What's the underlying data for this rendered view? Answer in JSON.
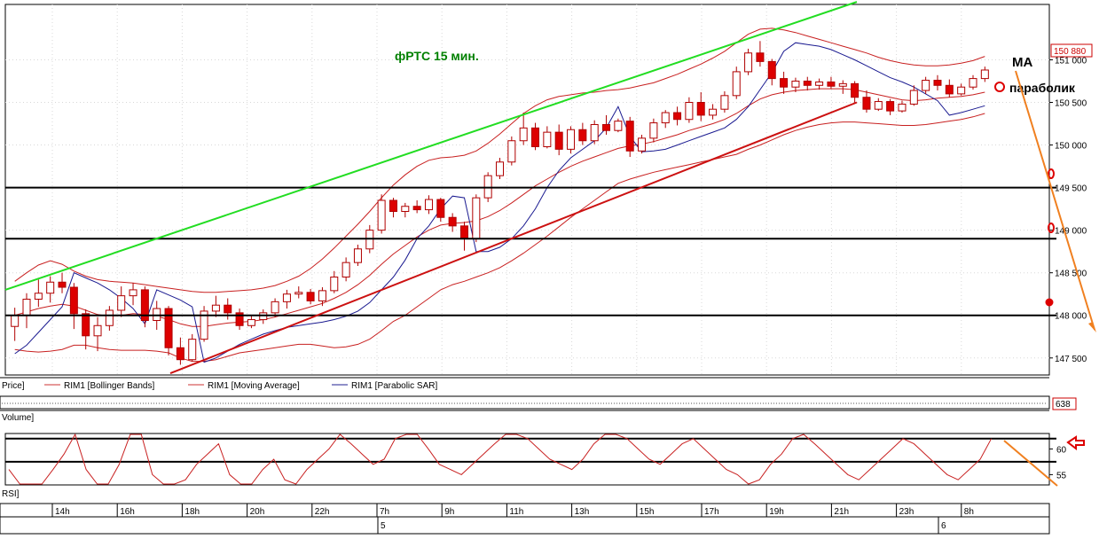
{
  "chart_data": {
    "type": "candlestick",
    "title": "фРТС   15 мин.",
    "price_axis": {
      "ylim": [
        147300,
        151650
      ],
      "ticks": [
        147500,
        148000,
        148500,
        149000,
        149500,
        150000,
        150500,
        151000
      ],
      "tick_labels": [
        "147 500",
        "148 000",
        "148 500",
        "149 000",
        "149 500",
        "150 000",
        "150 500",
        "151 000"
      ],
      "current_price": 150880,
      "current_price_label": "150 880"
    },
    "horizontal_levels": [
      149500,
      148900,
      148000
    ],
    "trendlines": [
      {
        "color": "#22dd22",
        "from": [
          0,
          148300
        ],
        "to": [
          1.6,
          151680
        ]
      },
      {
        "color": "#cc1111",
        "from": [
          0.31,
          147320
        ],
        "to": [
          1.6,
          150500
        ]
      }
    ],
    "legend": {
      "price": "Price]",
      "bollinger": "RIM1 [Bollinger Bands]",
      "ma": "RIM1 [Moving Average]",
      "sar": "RIM1 [Parabolic SAR]"
    },
    "annotations": {
      "ma_label": "MA",
      "sar_label": "параболик"
    },
    "volume": {
      "label": "Volume]",
      "value_label": "638"
    },
    "rsi": {
      "label": "RSI]",
      "ticks": [
        60,
        55
      ],
      "tick_labels": [
        "60",
        "55"
      ],
      "levels": [
        62,
        57.5
      ],
      "values": [
        56,
        53,
        51,
        52,
        56,
        59,
        63,
        56,
        52,
        53,
        57,
        63,
        64,
        55,
        52,
        51,
        54,
        57,
        59,
        61,
        55,
        53,
        52,
        56,
        58,
        54,
        53,
        56,
        58,
        60,
        63,
        61,
        59,
        57,
        58,
        62,
        64,
        63,
        60,
        57,
        56,
        55,
        57,
        59,
        61,
        63,
        64,
        62,
        60,
        58,
        57,
        56,
        58,
        61,
        63,
        64,
        62,
        60,
        58,
        57,
        59,
        61,
        62,
        60,
        58,
        56,
        55,
        53,
        54,
        57,
        59,
        62,
        63,
        61,
        59,
        57,
        55,
        54,
        56,
        58,
        60,
        62,
        61,
        59,
        57,
        55,
        54,
        56,
        58,
        62
      ],
      "ylim": [
        53,
        63
      ]
    },
    "time_axis": {
      "labels": [
        "14h",
        "16h",
        "18h",
        "20h",
        "22h",
        "7h",
        "9h",
        "11h",
        "13h",
        "15h",
        "17h",
        "19h",
        "21h",
        "23h",
        "8h"
      ],
      "day_labels": [
        "5",
        "6"
      ]
    },
    "candles": [
      [
        147870,
        148090,
        147700,
        148000
      ],
      [
        148000,
        148260,
        147850,
        148190
      ],
      [
        148190,
        148420,
        148100,
        148260
      ],
      [
        148260,
        148460,
        148150,
        148390
      ],
      [
        148390,
        148500,
        148260,
        148330
      ],
      [
        148330,
        148380,
        147840,
        148020
      ],
      [
        148020,
        148070,
        147600,
        147760
      ],
      [
        147760,
        147980,
        147580,
        147880
      ],
      [
        147880,
        148110,
        147820,
        148060
      ],
      [
        148060,
        148340,
        147980,
        148230
      ],
      [
        148230,
        148380,
        148120,
        148300
      ],
      [
        148300,
        148340,
        147860,
        147940
      ],
      [
        147940,
        148170,
        147830,
        148080
      ],
      [
        148080,
        148110,
        147530,
        147620
      ],
      [
        147620,
        147740,
        147420,
        147480
      ],
      [
        147480,
        147780,
        147460,
        147720
      ],
      [
        147720,
        148110,
        147690,
        148050
      ],
      [
        148050,
        148230,
        147980,
        148120
      ],
      [
        148120,
        148200,
        147950,
        148030
      ],
      [
        148030,
        148080,
        147830,
        147880
      ],
      [
        147880,
        148000,
        147850,
        147950
      ],
      [
        147950,
        148070,
        147900,
        148030
      ],
      [
        148030,
        148200,
        147980,
        148160
      ],
      [
        148160,
        148300,
        148080,
        148250
      ],
      [
        148250,
        148340,
        148200,
        148270
      ],
      [
        148270,
        148310,
        148130,
        148170
      ],
      [
        148170,
        148330,
        148110,
        148290
      ],
      [
        148290,
        148520,
        148260,
        148450
      ],
      [
        148450,
        148680,
        148400,
        148620
      ],
      [
        148620,
        148830,
        148580,
        148780
      ],
      [
        148780,
        149060,
        148730,
        149000
      ],
      [
        149000,
        149420,
        148960,
        149350
      ],
      [
        149350,
        149380,
        149150,
        149220
      ],
      [
        149220,
        149320,
        149150,
        149280
      ],
      [
        149280,
        149350,
        149200,
        149240
      ],
      [
        149240,
        149410,
        149190,
        149360
      ],
      [
        149360,
        149380,
        149100,
        149150
      ],
      [
        149150,
        149200,
        148980,
        149050
      ],
      [
        149050,
        149100,
        148760,
        148900
      ],
      [
        148900,
        149420,
        148860,
        149380
      ],
      [
        149380,
        149680,
        149330,
        149640
      ],
      [
        149640,
        149850,
        149600,
        149800
      ],
      [
        149800,
        150100,
        149760,
        150050
      ],
      [
        150050,
        150380,
        150000,
        150200
      ],
      [
        150200,
        150260,
        149940,
        149980
      ],
      [
        149980,
        150220,
        149960,
        150150
      ],
      [
        150150,
        150240,
        149880,
        149950
      ],
      [
        149950,
        150220,
        149900,
        150180
      ],
      [
        150180,
        150260,
        150000,
        150050
      ],
      [
        150050,
        150290,
        150010,
        150240
      ],
      [
        150240,
        150350,
        150120,
        150170
      ],
      [
        150170,
        150310,
        150150,
        150280
      ],
      [
        150280,
        150330,
        149860,
        149930
      ],
      [
        149930,
        150120,
        149900,
        150080
      ],
      [
        150080,
        150310,
        150030,
        150260
      ],
      [
        150260,
        150410,
        150200,
        150380
      ],
      [
        150380,
        150450,
        150230,
        150300
      ],
      [
        150300,
        150560,
        150260,
        150500
      ],
      [
        150500,
        150620,
        150280,
        150350
      ],
      [
        150350,
        150480,
        150300,
        150420
      ],
      [
        150420,
        150630,
        150380,
        150580
      ],
      [
        150580,
        150920,
        150540,
        150860
      ],
      [
        150860,
        151130,
        150820,
        151080
      ],
      [
        151080,
        151220,
        150920,
        150980
      ],
      [
        150980,
        151010,
        150700,
        150780
      ],
      [
        150780,
        150860,
        150600,
        150680
      ],
      [
        150680,
        150790,
        150620,
        150750
      ],
      [
        150750,
        150800,
        150640,
        150700
      ],
      [
        150700,
        150780,
        150650,
        150740
      ],
      [
        150740,
        150800,
        150660,
        150690
      ],
      [
        150690,
        150760,
        150600,
        150720
      ],
      [
        150720,
        150750,
        150500,
        150560
      ],
      [
        150560,
        150640,
        150380,
        150420
      ],
      [
        150420,
        150550,
        150400,
        150510
      ],
      [
        150510,
        150540,
        150350,
        150400
      ],
      [
        150400,
        150520,
        150380,
        150480
      ],
      [
        150480,
        150700,
        150460,
        150640
      ],
      [
        150640,
        150800,
        150600,
        150760
      ],
      [
        150760,
        150820,
        150640,
        150700
      ],
      [
        150700,
        150770,
        150560,
        150600
      ],
      [
        150600,
        150720,
        150580,
        150680
      ],
      [
        150680,
        150820,
        150650,
        150780
      ],
      [
        150780,
        150920,
        150740,
        150880
      ]
    ],
    "moving_average": [
      148000,
      148040,
      148080,
      148110,
      148130,
      148110,
      148060,
      148010,
      147990,
      148000,
      148020,
      148010,
      147990,
      147950,
      147900,
      147870,
      147870,
      147890,
      147910,
      147920,
      147930,
      147950,
      147980,
      148020,
      148060,
      148100,
      148140,
      148200,
      148270,
      148360,
      148470,
      148600,
      148720,
      148820,
      148920,
      149000,
      149060,
      149080,
      149090,
      149110,
      149160,
      149230,
      149320,
      149420,
      149520,
      149600,
      149680,
      149750,
      149810,
      149860,
      149910,
      149960,
      149990,
      150010,
      150040,
      150080,
      150120,
      150170,
      150210,
      150250,
      150300,
      150370,
      150460,
      150540,
      150590,
      150620,
      150640,
      150650,
      150660,
      150660,
      150660,
      150650,
      150620,
      150590,
      150560,
      150530,
      150520,
      150530,
      150550,
      150560,
      150570,
      150590,
      150620
    ],
    "bollinger_upper": [
      148400,
      148500,
      148590,
      148640,
      148600,
      148520,
      148460,
      148420,
      148400,
      148390,
      148380,
      148360,
      148340,
      148320,
      148300,
      148280,
      148270,
      148270,
      148280,
      148290,
      148300,
      148320,
      148350,
      148400,
      148460,
      148550,
      148660,
      148790,
      148930,
      149070,
      149220,
      149380,
      149530,
      149650,
      149750,
      149820,
      149850,
      149860,
      149880,
      149930,
      150020,
      150130,
      150250,
      150370,
      150460,
      150530,
      150570,
      150590,
      150610,
      150620,
      150640,
      150650,
      150670,
      150700,
      150730,
      150780,
      150830,
      150890,
      150950,
      151020,
      151100,
      151200,
      151300,
      151360,
      151370,
      151350,
      151320,
      151280,
      151240,
      151200,
      151160,
      151120,
      151080,
      151030,
      150990,
      150960,
      150940,
      150930,
      150930,
      150940,
      150960,
      150990,
      151040
    ],
    "bollinger_lower": [
      147600,
      147580,
      147570,
      147580,
      147600,
      147650,
      147650,
      147620,
      147600,
      147590,
      147590,
      147590,
      147580,
      147560,
      147500,
      147460,
      147460,
      147480,
      147520,
      147560,
      147580,
      147600,
      147620,
      147640,
      147660,
      147660,
      147640,
      147620,
      147630,
      147660,
      147720,
      147820,
      147930,
      148000,
      148100,
      148200,
      148300,
      148360,
      148400,
      148450,
      148500,
      148560,
      148640,
      148730,
      148830,
      148930,
      149040,
      149150,
      149250,
      149350,
      149450,
      149550,
      149600,
      149640,
      149680,
      149710,
      149740,
      149770,
      149800,
      149830,
      149860,
      149890,
      149950,
      150000,
      150060,
      150120,
      150170,
      150210,
      150240,
      150260,
      150270,
      150270,
      150260,
      150250,
      150240,
      150230,
      150230,
      150240,
      150260,
      150280,
      150300,
      150330,
      150370
    ],
    "parabolic_sar": [
      147550,
      147650,
      147800,
      147950,
      148100,
      148500,
      148440,
      148380,
      148300,
      148200,
      148080,
      147900,
      148300,
      148240,
      148180,
      148100,
      147450,
      147500,
      147580,
      147660,
      147720,
      147780,
      147820,
      147860,
      147880,
      147900,
      147920,
      147950,
      147990,
      148050,
      148150,
      148300,
      148450,
      148650,
      148900,
      149050,
      149250,
      149400,
      149380,
      148750,
      148750,
      148800,
      148900,
      149050,
      149250,
      149500,
      149700,
      149850,
      149950,
      150050,
      150200,
      150450,
      150100,
      149920,
      149930,
      149950,
      150000,
      150050,
      150100,
      150150,
      150200,
      150300,
      150450,
      150650,
      150850,
      151100,
      151200,
      151180,
      151160,
      151120,
      151060,
      151000,
      150930,
      150860,
      150790,
      150740,
      150680,
      150600,
      150520,
      150350,
      150380,
      150420,
      150460
    ]
  }
}
